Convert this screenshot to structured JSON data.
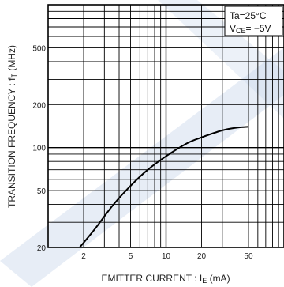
{
  "chart_data": {
    "type": "line",
    "x_scale": "log",
    "y_scale": "log",
    "xlim": [
      1,
      100
    ],
    "ylim": [
      20,
      1000
    ],
    "x_tick_labels": [
      {
        "value": 2,
        "label": "2"
      },
      {
        "value": 5,
        "label": "5"
      },
      {
        "value": 10,
        "label": "10"
      },
      {
        "value": 20,
        "label": "20"
      },
      {
        "value": 50,
        "label": "50"
      }
    ],
    "y_tick_labels": [
      {
        "value": 20,
        "label": "20"
      },
      {
        "value": 50,
        "label": "50"
      },
      {
        "value": 100,
        "label": "100"
      },
      {
        "value": 200,
        "label": "200"
      },
      {
        "value": 500,
        "label": "500"
      }
    ],
    "xlabel": {
      "main": "EMITTER CURRENT : I",
      "sub": "E",
      "unit": " (mA)"
    },
    "ylabel": {
      "main": "TRANSITION FREQUENCY : f",
      "sub": "T",
      "unit": " (MHz)"
    },
    "grid": true,
    "annotation": {
      "line1": "Ta=25°C",
      "line2_main": "V",
      "line2_sub": "CE",
      "line2_value": "= −5V",
      "position": "top-right"
    },
    "series": [
      {
        "x": [
          1.85,
          2.5,
          3.5,
          5,
          7,
          10,
          15,
          20,
          30,
          40,
          50
        ],
        "y": [
          20,
          27,
          39,
          54,
          70,
          87,
          107,
          118,
          132,
          138,
          140
        ]
      }
    ]
  },
  "colors": {
    "grid": "#000000",
    "curve": "#000000",
    "watermark": "#c9d6ec"
  }
}
